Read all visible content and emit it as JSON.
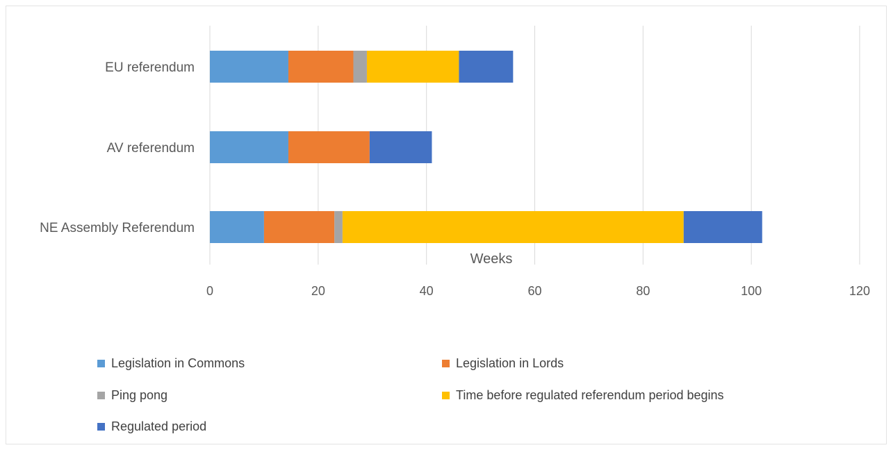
{
  "chart_data": {
    "type": "bar",
    "orientation": "horizontal",
    "stacked": true,
    "xlabel": "Weeks",
    "xlim": [
      0,
      120
    ],
    "xticks": [
      0,
      20,
      40,
      60,
      80,
      100,
      120
    ],
    "grid": true,
    "legend_position": "bottom",
    "categories": [
      "EU referendum",
      "AV referendum",
      "NE Assembly Referendum"
    ],
    "series": [
      {
        "name": "Legislation in Commons",
        "color": "#5b9bd5",
        "values": [
          14.5,
          14.5,
          10
        ]
      },
      {
        "name": "Legislation in Lords",
        "color": "#ed7d31",
        "values": [
          12,
          15,
          13
        ]
      },
      {
        "name": "Ping pong",
        "color": "#a5a5a5",
        "values": [
          2.5,
          0,
          1.5
        ]
      },
      {
        "name": "Time before regulated referendum period begins",
        "color": "#ffc000",
        "values": [
          17,
          0,
          63
        ]
      },
      {
        "name": "Regulated period",
        "color": "#4472c4",
        "values": [
          10,
          11.5,
          14.5
        ]
      }
    ]
  }
}
